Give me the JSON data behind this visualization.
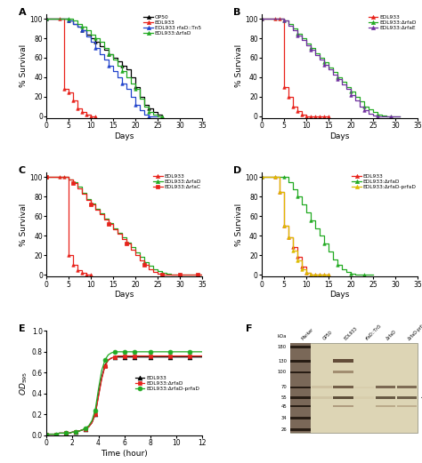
{
  "panel_A": {
    "title": "A",
    "xlabel": "Days",
    "ylabel": "% Survival",
    "xlim": [
      0,
      35
    ],
    "ylim": [
      -2,
      105
    ],
    "xticks": [
      0,
      5,
      10,
      15,
      20,
      25,
      30,
      35
    ],
    "yticks": [
      0,
      20,
      40,
      60,
      80,
      100
    ],
    "series": [
      {
        "label": "OP50",
        "color": "#000000",
        "marker": "^",
        "x": [
          0,
          3,
          4,
          5,
          6,
          7,
          8,
          9,
          10,
          11,
          12,
          13,
          14,
          15,
          16,
          17,
          18,
          19,
          20,
          21,
          22,
          23,
          24,
          25,
          26
        ],
        "y": [
          100,
          100,
          100,
          98,
          95,
          92,
          88,
          84,
          80,
          76,
          72,
          68,
          64,
          60,
          56,
          52,
          48,
          40,
          30,
          20,
          12,
          8,
          4,
          2,
          0
        ]
      },
      {
        "label": "EDL933",
        "color": "#e8221b",
        "marker": "^",
        "x": [
          0,
          3,
          4,
          5,
          6,
          7,
          8,
          9,
          10,
          11
        ],
        "y": [
          100,
          100,
          28,
          24,
          16,
          8,
          4,
          2,
          0,
          0
        ]
      },
      {
        "label": "EDL933 rfaD::Tn5",
        "color": "#2244cc",
        "marker": "^",
        "x": [
          0,
          3,
          4,
          5,
          6,
          7,
          8,
          9,
          10,
          11,
          12,
          13,
          14,
          15,
          16,
          17,
          18,
          19,
          20,
          21,
          22,
          23,
          24,
          25
        ],
        "y": [
          100,
          100,
          100,
          98,
          95,
          92,
          88,
          82,
          76,
          70,
          64,
          58,
          52,
          46,
          40,
          34,
          28,
          20,
          12,
          6,
          2,
          0,
          0,
          0
        ]
      },
      {
        "label": "EDL933:ΔrfaD",
        "color": "#22aa22",
        "marker": "^",
        "x": [
          0,
          3,
          4,
          5,
          6,
          7,
          8,
          9,
          10,
          11,
          12,
          13,
          14,
          15,
          16,
          17,
          18,
          19,
          20,
          21,
          22,
          23,
          24,
          25,
          26
        ],
        "y": [
          100,
          100,
          100,
          100,
          98,
          95,
          92,
          88,
          84,
          80,
          76,
          70,
          64,
          58,
          52,
          46,
          40,
          34,
          28,
          18,
          10,
          4,
          2,
          0,
          0
        ]
      }
    ]
  },
  "panel_B": {
    "title": "B",
    "xlabel": "Days",
    "ylabel": "% Survival",
    "xlim": [
      0,
      35
    ],
    "ylim": [
      -2,
      105
    ],
    "xticks": [
      0,
      5,
      10,
      15,
      20,
      25,
      30,
      35
    ],
    "yticks": [
      0,
      20,
      40,
      60,
      80,
      100
    ],
    "series": [
      {
        "label": "EDL933",
        "color": "#e8221b",
        "marker": "^",
        "x": [
          0,
          3,
          4,
          5,
          6,
          7,
          8,
          9,
          10,
          11,
          12,
          13,
          14,
          15
        ],
        "y": [
          100,
          100,
          100,
          30,
          20,
          10,
          5,
          2,
          0,
          0,
          0,
          0,
          0,
          0
        ]
      },
      {
        "label": "EDL933:ΔrfaD",
        "color": "#22aa22",
        "marker": "^",
        "x": [
          0,
          3,
          4,
          5,
          6,
          7,
          8,
          9,
          10,
          11,
          12,
          13,
          14,
          15,
          16,
          17,
          18,
          19,
          20,
          21,
          22,
          23,
          24,
          25,
          26,
          27,
          28,
          29,
          30,
          31
        ],
        "y": [
          100,
          100,
          100,
          98,
          95,
          90,
          85,
          80,
          75,
          70,
          65,
          60,
          55,
          50,
          45,
          40,
          35,
          30,
          25,
          20,
          15,
          10,
          7,
          4,
          2,
          1,
          0,
          0,
          0,
          0
        ]
      },
      {
        "label": "EDL933:ΔrfaE",
        "color": "#7030a0",
        "marker": "^",
        "x": [
          0,
          3,
          4,
          5,
          6,
          7,
          8,
          9,
          10,
          11,
          12,
          13,
          14,
          15,
          16,
          17,
          18,
          19,
          20,
          21,
          22,
          23,
          24,
          25,
          26,
          27,
          28,
          29,
          30,
          31
        ],
        "y": [
          100,
          100,
          100,
          98,
          93,
          88,
          83,
          78,
          73,
          68,
          63,
          58,
          53,
          48,
          43,
          38,
          33,
          28,
          22,
          16,
          10,
          6,
          3,
          1,
          0,
          0,
          0,
          0,
          0,
          0
        ]
      }
    ]
  },
  "panel_C": {
    "title": "C",
    "xlabel": "Days",
    "ylabel": "% Survival",
    "xlim": [
      0,
      35
    ],
    "ylim": [
      -2,
      105
    ],
    "xticks": [
      0,
      5,
      10,
      15,
      20,
      25,
      30,
      35
    ],
    "yticks": [
      0,
      20,
      40,
      60,
      80,
      100
    ],
    "series": [
      {
        "label": "EDL933",
        "color": "#e8221b",
        "marker": "^",
        "x": [
          0,
          3,
          4,
          5,
          6,
          7,
          8,
          9,
          10
        ],
        "y": [
          100,
          100,
          100,
          20,
          10,
          5,
          2,
          0,
          0
        ]
      },
      {
        "label": "EDL933:ΔrfaD",
        "color": "#22aa22",
        "marker": "^",
        "x": [
          0,
          3,
          4,
          5,
          6,
          7,
          8,
          9,
          10,
          11,
          12,
          13,
          14,
          15,
          16,
          17,
          18,
          19,
          20,
          21,
          22,
          23,
          24,
          25,
          26,
          27,
          28,
          29,
          30,
          31,
          32,
          33,
          34,
          35
        ],
        "y": [
          100,
          100,
          100,
          98,
          95,
          90,
          84,
          78,
          73,
          68,
          63,
          58,
          53,
          48,
          43,
          38,
          33,
          28,
          23,
          18,
          13,
          9,
          6,
          4,
          2,
          1,
          0,
          0,
          0,
          0,
          0,
          0,
          0,
          0
        ]
      },
      {
        "label": "EDL933:ΔrfaC",
        "color": "#e8221b",
        "marker": "s",
        "x": [
          0,
          3,
          4,
          5,
          6,
          7,
          8,
          9,
          10,
          11,
          12,
          13,
          14,
          15,
          16,
          17,
          18,
          19,
          20,
          21,
          22,
          23,
          24,
          25,
          26,
          27,
          28,
          29,
          30,
          31,
          32,
          33,
          34,
          35
        ],
        "y": [
          100,
          100,
          100,
          98,
          94,
          89,
          83,
          77,
          72,
          67,
          62,
          57,
          52,
          47,
          42,
          37,
          32,
          26,
          20,
          15,
          10,
          6,
          3,
          1,
          0,
          0,
          0,
          0,
          0,
          0,
          0,
          0,
          0,
          0
        ]
      }
    ]
  },
  "panel_D": {
    "title": "D",
    "xlabel": "Days",
    "ylabel": "% Survival",
    "xlim": [
      0,
      35
    ],
    "ylim": [
      -2,
      105
    ],
    "xticks": [
      0,
      5,
      10,
      15,
      20,
      25,
      30,
      35
    ],
    "yticks": [
      0,
      20,
      40,
      60,
      80,
      100
    ],
    "series": [
      {
        "label": "EDL933",
        "color": "#e8221b",
        "marker": "^",
        "x": [
          0,
          3,
          4,
          5,
          6,
          7,
          8,
          9,
          10,
          11,
          12,
          13,
          14,
          15
        ],
        "y": [
          100,
          100,
          85,
          50,
          38,
          28,
          18,
          8,
          2,
          0,
          0,
          0,
          0,
          0
        ]
      },
      {
        "label": "EDL933:ΔrfaD",
        "color": "#22aa22",
        "marker": "^",
        "x": [
          0,
          3,
          4,
          5,
          6,
          7,
          8,
          9,
          10,
          11,
          12,
          13,
          14,
          15,
          16,
          17,
          18,
          19,
          20,
          21,
          22,
          23,
          24,
          25
        ],
        "y": [
          100,
          100,
          100,
          100,
          95,
          88,
          80,
          72,
          64,
          56,
          48,
          40,
          32,
          24,
          16,
          10,
          6,
          3,
          1,
          0,
          0,
          0,
          0,
          0
        ]
      },
      {
        "label": "EDL933:ΔrfaD-prfaD",
        "color": "#ddbb00",
        "marker": "^",
        "x": [
          0,
          3,
          4,
          5,
          6,
          7,
          8,
          9,
          10,
          11,
          12,
          13,
          14,
          15
        ],
        "y": [
          100,
          100,
          85,
          50,
          38,
          25,
          15,
          6,
          2,
          0,
          0,
          0,
          0,
          0
        ]
      }
    ]
  },
  "panel_E": {
    "title": "E",
    "xlabel": "Time (hour)",
    "ylabel": "OD595",
    "xlim": [
      0,
      12
    ],
    "ylim": [
      0,
      1.0
    ],
    "xticks": [
      0,
      2,
      4,
      6,
      8,
      10,
      12
    ],
    "yticks": [
      0.0,
      0.2,
      0.4,
      0.6,
      0.8,
      1.0
    ],
    "series": [
      {
        "label": "EDL933",
        "color": "#000000",
        "marker": "^",
        "x": [
          0,
          0.25,
          0.5,
          0.75,
          1,
          1.25,
          1.5,
          1.75,
          2,
          2.25,
          2.5,
          2.75,
          3,
          3.25,
          3.5,
          3.75,
          4,
          4.25,
          4.5,
          4.75,
          5,
          5.25,
          5.5,
          5.75,
          6,
          6.25,
          6.5,
          6.75,
          7,
          7.5,
          8,
          8.5,
          9,
          9.5,
          10,
          10.5,
          11,
          11.5,
          12
        ],
        "y": [
          0.01,
          0.01,
          0.01,
          0.01,
          0.02,
          0.02,
          0.02,
          0.02,
          0.03,
          0.03,
          0.04,
          0.05,
          0.06,
          0.08,
          0.12,
          0.2,
          0.38,
          0.55,
          0.67,
          0.72,
          0.74,
          0.75,
          0.75,
          0.75,
          0.75,
          0.75,
          0.75,
          0.75,
          0.75,
          0.75,
          0.75,
          0.75,
          0.75,
          0.75,
          0.75,
          0.75,
          0.75,
          0.75,
          0.75
        ]
      },
      {
        "label": "EDL933:ΔrfaD",
        "color": "#e8221b",
        "marker": "s",
        "x": [
          0,
          0.25,
          0.5,
          0.75,
          1,
          1.25,
          1.5,
          1.75,
          2,
          2.25,
          2.5,
          2.75,
          3,
          3.25,
          3.5,
          3.75,
          4,
          4.25,
          4.5,
          4.75,
          5,
          5.25,
          5.5,
          5.75,
          6,
          6.25,
          6.5,
          6.75,
          7,
          7.5,
          8,
          8.5,
          9,
          9.5,
          10,
          10.5,
          11,
          11.5,
          12
        ],
        "y": [
          0.01,
          0.01,
          0.01,
          0.01,
          0.02,
          0.02,
          0.02,
          0.02,
          0.03,
          0.03,
          0.04,
          0.05,
          0.06,
          0.08,
          0.12,
          0.2,
          0.37,
          0.54,
          0.66,
          0.72,
          0.74,
          0.75,
          0.76,
          0.76,
          0.76,
          0.76,
          0.76,
          0.76,
          0.76,
          0.76,
          0.76,
          0.76,
          0.76,
          0.76,
          0.76,
          0.76,
          0.76,
          0.76,
          0.76
        ]
      },
      {
        "label": "EDL933:ΔrfaD-prfaD",
        "color": "#22aa22",
        "marker": "o",
        "x": [
          0,
          0.25,
          0.5,
          0.75,
          1,
          1.25,
          1.5,
          1.75,
          2,
          2.25,
          2.5,
          2.75,
          3,
          3.25,
          3.5,
          3.75,
          4,
          4.25,
          4.5,
          4.75,
          5,
          5.25,
          5.5,
          5.75,
          6,
          6.25,
          6.5,
          6.75,
          7,
          7.5,
          8,
          8.5,
          9,
          9.5,
          10,
          10.5,
          11,
          11.5,
          12
        ],
        "y": [
          0.01,
          0.01,
          0.01,
          0.01,
          0.02,
          0.02,
          0.02,
          0.02,
          0.03,
          0.03,
          0.04,
          0.05,
          0.07,
          0.09,
          0.14,
          0.24,
          0.44,
          0.62,
          0.72,
          0.77,
          0.79,
          0.8,
          0.8,
          0.8,
          0.8,
          0.8,
          0.8,
          0.8,
          0.8,
          0.8,
          0.8,
          0.8,
          0.8,
          0.8,
          0.8,
          0.8,
          0.8,
          0.8,
          0.8
        ]
      }
    ]
  },
  "panel_F": {
    "title": "F",
    "lane_labels": [
      "Marker",
      "OP50",
      "EDL933",
      "rfaD::Tn5",
      "ΔrfaD",
      "ΔrfaD-prfaD"
    ],
    "kda_labels": [
      180,
      130,
      100,
      70,
      55,
      45,
      34,
      26
    ],
    "arrow_kda": 55,
    "gel_bg": "#e8dcc0",
    "marker_lane_bg": "#8a7060",
    "band_colors": {
      "dark": "#4a3020",
      "medium": "#7a6050",
      "light": "#c0a880"
    }
  }
}
